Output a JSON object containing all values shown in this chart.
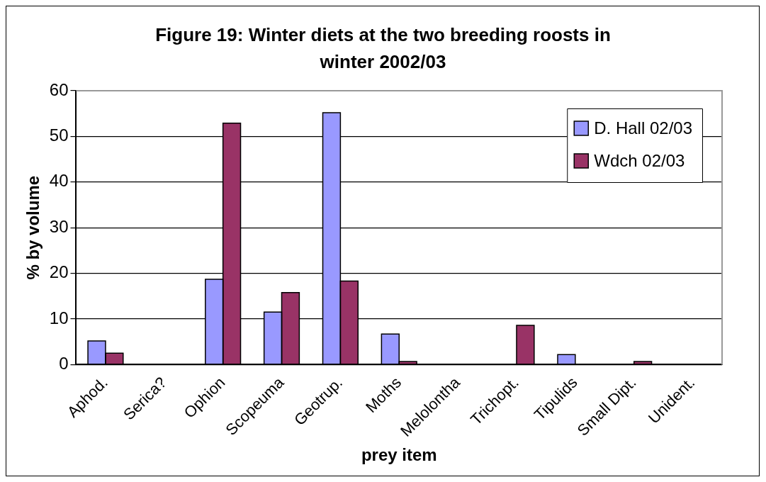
{
  "chart_data": {
    "type": "bar",
    "title": "Figure 19: Winter diets at the two breeding roosts in winter 2002/03",
    "xlabel": "prey item",
    "ylabel": "% by volume",
    "categories": [
      "Aphod.",
      "Serica?",
      "Ophion",
      "Scopeuma",
      "Geotrup.",
      "Moths",
      "Melolontha",
      "Trichopt.",
      "Tipulids",
      "Small Dipt.",
      "Unident."
    ],
    "series": [
      {
        "name": "D. Hall 02/03",
        "color": "#9999ff",
        "values": [
          5.2,
          0,
          18.7,
          11.5,
          55.2,
          6.7,
          0,
          0,
          2.2,
          0,
          0
        ]
      },
      {
        "name": "Wdch 02/03",
        "color": "#993366",
        "values": [
          2.5,
          0,
          52.9,
          15.8,
          18.3,
          0.7,
          0,
          8.6,
          0,
          0.7,
          0
        ]
      }
    ],
    "ylim": [
      0,
      60
    ],
    "yticks": [
      0,
      10,
      20,
      30,
      40,
      50,
      60
    ],
    "grid": "y",
    "legend": "top right"
  }
}
